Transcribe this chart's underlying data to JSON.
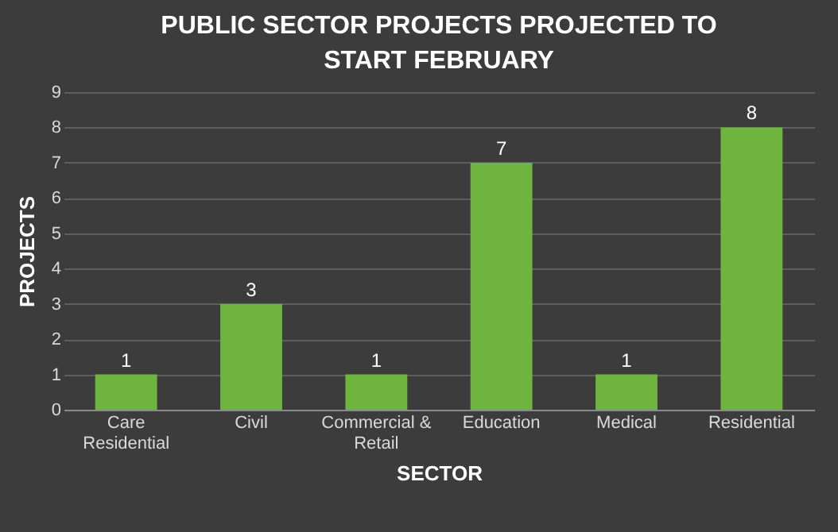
{
  "chart_data": {
    "type": "bar",
    "title": "PUBLIC SECTOR PROJECTS PROJECTED TO START FEBRUARY",
    "xlabel": "SECTOR",
    "ylabel": "PROJECTS",
    "categories": [
      "Care Residential",
      "Civil",
      "Commercial & Retail",
      "Education",
      "Medical",
      "Residential"
    ],
    "values": [
      1,
      3,
      1,
      7,
      1,
      8
    ],
    "color": "#6fb43f",
    "ylim": [
      0,
      9
    ],
    "yticks": [
      0,
      1,
      2,
      3,
      4,
      5,
      6,
      7,
      8,
      9
    ],
    "grid": "y",
    "data_labels": true
  }
}
